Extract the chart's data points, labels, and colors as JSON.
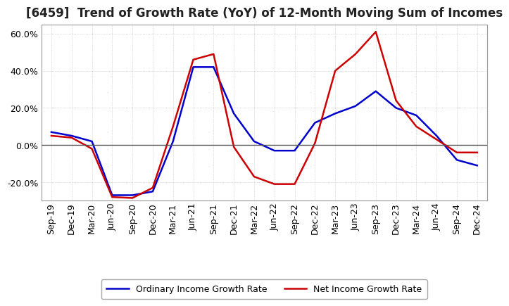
{
  "title": "[6459]  Trend of Growth Rate (YoY) of 12-Month Moving Sum of Incomes",
  "x_labels": [
    "Sep-19",
    "Dec-19",
    "Mar-20",
    "Jun-20",
    "Sep-20",
    "Dec-20",
    "Mar-21",
    "Jun-21",
    "Sep-21",
    "Dec-21",
    "Mar-22",
    "Jun-22",
    "Sep-22",
    "Dec-22",
    "Mar-23",
    "Jun-23",
    "Sep-23",
    "Dec-23",
    "Mar-24",
    "Jun-24",
    "Sep-24",
    "Dec-24"
  ],
  "ordinary_income": [
    0.07,
    0.05,
    0.02,
    -0.27,
    -0.27,
    -0.25,
    0.02,
    0.42,
    0.42,
    0.17,
    0.02,
    -0.03,
    -0.03,
    0.12,
    0.17,
    0.21,
    0.29,
    0.2,
    0.16,
    0.05,
    -0.08,
    -0.11
  ],
  "net_income": [
    0.05,
    0.04,
    -0.02,
    -0.28,
    -0.285,
    -0.23,
    0.1,
    0.46,
    0.49,
    -0.01,
    -0.17,
    -0.21,
    -0.21,
    0.01,
    0.4,
    0.49,
    0.61,
    0.24,
    0.1,
    0.03,
    -0.04,
    -0.04
  ],
  "ordinary_color": "#0000cc",
  "net_color": "#cc0000",
  "ylim": [
    -0.3,
    0.65
  ],
  "yticks": [
    -0.2,
    0.0,
    0.2,
    0.4,
    0.6
  ],
  "background_color": "#ffffff",
  "grid_color": "#bbbbbb",
  "legend_ordinary": "Ordinary Income Growth Rate",
  "legend_net": "Net Income Growth Rate",
  "title_fontsize": 12,
  "tick_fontsize": 9,
  "legend_fontsize": 9
}
